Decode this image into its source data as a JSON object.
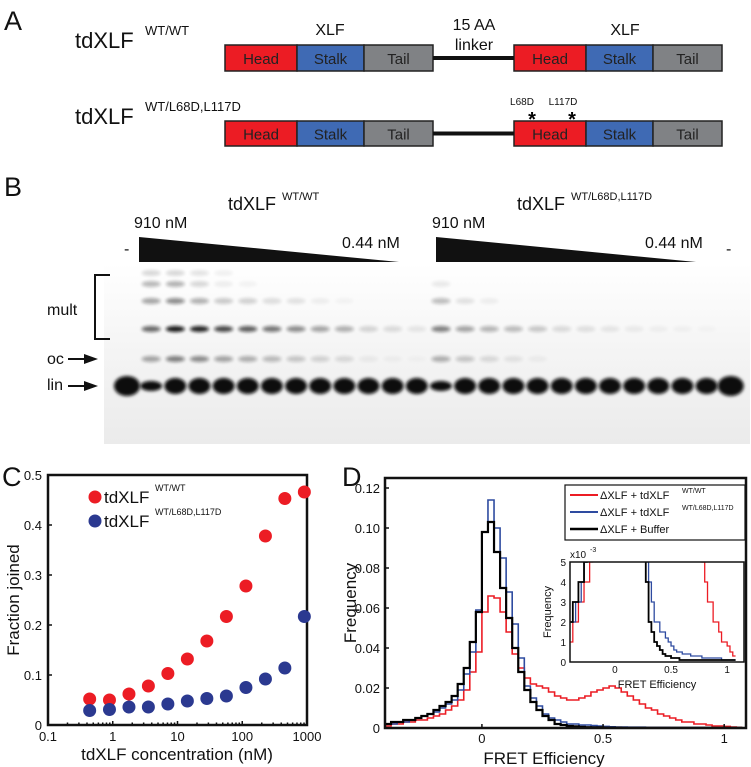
{
  "panels": {
    "a": {
      "label": "A",
      "construct1": {
        "name": "tdXLF",
        "sup": "WT/WT"
      },
      "construct2": {
        "name": "tdXLF",
        "sup": "WT/L68D,L117D"
      },
      "xlf_label": "XLF",
      "linker_line1": "15 AA",
      "linker_line2": "linker",
      "domains": [
        "Head",
        "Stalk",
        "Tail"
      ],
      "domain_colors": [
        "#ec1c24",
        "#3f6ab4",
        "#808285"
      ],
      "mutations": [
        "L68D",
        "L117D"
      ],
      "mutation_mark": "*"
    },
    "b": {
      "label": "B",
      "group1": {
        "name": "tdXLF",
        "sup": "WT/WT",
        "high": "910 nM",
        "low": "0.44 nM"
      },
      "group2": {
        "name": "tdXLF",
        "sup": "WT/L68D,L117D",
        "high": "910 nM",
        "low": "0.44 nM"
      },
      "control_label": "-",
      "band_labels": {
        "mult": "mult",
        "oc": "oc",
        "lin": "lin"
      }
    },
    "c": {
      "label": "C"
    },
    "d": {
      "label": "D"
    }
  },
  "chart_data": [
    {
      "type": "scatter",
      "xlabel": "tdXLF concentration (nM)",
      "ylabel": "Fraction joined",
      "xscale": "log",
      "xlim": [
        0.1,
        1000
      ],
      "ylim": [
        0,
        0.5
      ],
      "xticks": [
        "0.1",
        "1",
        "10",
        "100",
        "1000"
      ],
      "yticks": [
        "0",
        "0.1",
        "0.2",
        "0.3",
        "0.4",
        "0.5"
      ],
      "legend_placement": "top-left",
      "x": [
        0.44,
        0.89,
        1.78,
        3.55,
        7.1,
        14.2,
        28.4,
        56.9,
        114,
        228,
        455,
        910
      ],
      "series": [
        {
          "name": "tdXLF",
          "name_sup": "WT/WT",
          "color": "#ec1c24",
          "values": [
            0.052,
            0.05,
            0.062,
            0.078,
            0.103,
            0.132,
            0.168,
            0.217,
            0.278,
            0.378,
            0.453,
            0.466
          ]
        },
        {
          "name": "tdXLF",
          "name_sup": "WT/L68D,L117D",
          "color": "#2b3990",
          "values": [
            0.029,
            0.031,
            0.036,
            0.036,
            0.042,
            0.048,
            0.053,
            0.058,
            0.075,
            0.092,
            0.114,
            0.217
          ]
        }
      ]
    },
    {
      "type": "histogram",
      "xlabel": "FRET Efficiency",
      "ylabel": "Frequency",
      "xlim": [
        -0.4,
        1.09
      ],
      "ylim": [
        0,
        0.125
      ],
      "xticks": [
        "0",
        "0.5",
        "1"
      ],
      "yticks": [
        "0",
        "0.02",
        "0.04",
        "0.06",
        "0.08",
        "0.10",
        "0.12"
      ],
      "legend_placement": "top-right",
      "bin_start": -0.4,
      "bin_width": 0.025,
      "series": [
        {
          "name": "ΔXLF + tdXLF",
          "name_sup": "WT/WT",
          "color": "#ec1c24",
          "values": [
            0.001,
            0.002,
            0.002,
            0.003,
            0.003,
            0.004,
            0.004,
            0.005,
            0.006,
            0.007,
            0.009,
            0.011,
            0.014,
            0.019,
            0.028,
            0.038,
            0.058,
            0.066,
            0.065,
            0.058,
            0.048,
            0.037,
            0.03,
            0.025,
            0.022,
            0.021,
            0.02,
            0.018,
            0.016,
            0.015,
            0.014,
            0.014,
            0.015,
            0.016,
            0.018,
            0.019,
            0.02,
            0.021,
            0.02,
            0.018,
            0.016,
            0.014,
            0.012,
            0.01,
            0.009,
            0.007,
            0.006,
            0.005,
            0.004,
            0.003,
            0.003,
            0.002,
            0.002,
            0.0015,
            0.001,
            0.001,
            0.0008,
            0.0005,
            0.0003
          ]
        },
        {
          "name": "ΔXLF + tdXLF",
          "name_sup": "WT/L68D,L117D",
          "color": "#2e4ba0",
          "values": [
            0.002,
            0.002,
            0.003,
            0.003,
            0.004,
            0.005,
            0.006,
            0.007,
            0.008,
            0.01,
            0.012,
            0.014,
            0.019,
            0.027,
            0.038,
            0.059,
            0.098,
            0.114,
            0.1,
            0.085,
            0.068,
            0.052,
            0.035,
            0.021,
            0.015,
            0.011,
            0.007,
            0.005,
            0.004,
            0.003,
            0.002,
            0.002,
            0.0015,
            0.0015,
            0.0012,
            0.001,
            0.0008,
            0.0006,
            0.0005,
            0.0005,
            0.0004,
            0.0004,
            0.0004,
            0.0003,
            0.0003,
            0.0003,
            0.0003,
            0.0002,
            0.0002,
            0.0002,
            0.0002,
            0.0002,
            0.0002,
            0.0002,
            0.0001,
            0.0001,
            0.0001,
            0.0001,
            0.0001
          ]
        },
        {
          "name": "ΔXLF + Buffer",
          "name_sup": "",
          "color": "#000000",
          "values": [
            0.002,
            0.003,
            0.003,
            0.004,
            0.004,
            0.005,
            0.006,
            0.007,
            0.009,
            0.011,
            0.013,
            0.016,
            0.022,
            0.03,
            0.043,
            0.058,
            0.098,
            0.103,
            0.088,
            0.07,
            0.055,
            0.04,
            0.028,
            0.019,
            0.013,
            0.009,
            0.006,
            0.004,
            0.002,
            0.0015,
            0.001,
            0.0008,
            0.0006,
            0.0004,
            0.0003,
            0.0003,
            0.0002,
            0.0002,
            0.0002,
            0.0001,
            0.0001,
            0.0001,
            0.0001,
            0.0001,
            0.0001,
            0.0001,
            0.0001,
            0.0001,
            0.0001,
            0.0001,
            0.0001,
            0.0001,
            0.0001,
            0.0001,
            0.0001,
            0.0001,
            0.0001,
            0.0001,
            0.0001
          ]
        }
      ],
      "inset": {
        "xlabel": "FRET Efficiency",
        "ylabel": "Frequency",
        "y_multiplier": "x10",
        "y_multiplier_exp": "-3",
        "xlim": [
          -0.4,
          1.15
        ],
        "ylim": [
          0,
          5
        ],
        "xticks": [
          "0",
          "0.5",
          "1"
        ],
        "yticks": [
          "0",
          "1",
          "2",
          "3",
          "4",
          "5"
        ]
      }
    }
  ]
}
